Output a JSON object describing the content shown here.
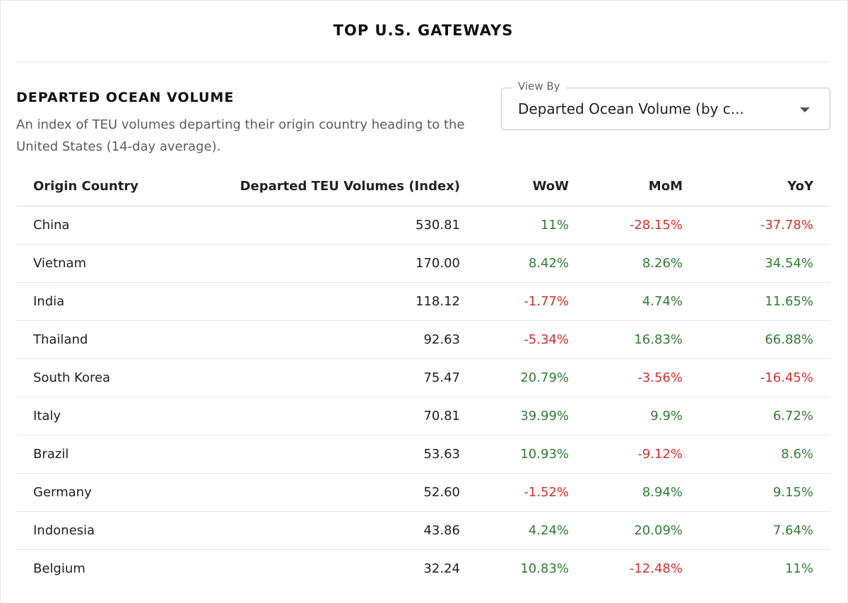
{
  "page": {
    "title": "TOP U.S. GATEWAYS"
  },
  "section": {
    "heading": "DEPARTED OCEAN VOLUME",
    "description": "An index of TEU volumes departing their origin country heading to the United States (14-day average)."
  },
  "view_by": {
    "label": "View By",
    "selected": "Departed Ocean Volume (by c..."
  },
  "table": {
    "columns": [
      "Origin Country",
      "Departed TEU Volumes (Index)",
      "WoW",
      "MoM",
      "YoY"
    ],
    "rows": [
      {
        "country": "China",
        "volume": "530.81",
        "wow": "11%",
        "mom": "-28.15%",
        "yoy": "-37.78%"
      },
      {
        "country": "Vietnam",
        "volume": "170.00",
        "wow": "8.42%",
        "mom": "8.26%",
        "yoy": "34.54%"
      },
      {
        "country": "India",
        "volume": "118.12",
        "wow": "-1.77%",
        "mom": "4.74%",
        "yoy": "11.65%"
      },
      {
        "country": "Thailand",
        "volume": "92.63",
        "wow": "-5.34%",
        "mom": "16.83%",
        "yoy": "66.88%"
      },
      {
        "country": "South Korea",
        "volume": "75.47",
        "wow": "20.79%",
        "mom": "-3.56%",
        "yoy": "-16.45%"
      },
      {
        "country": "Italy",
        "volume": "70.81",
        "wow": "39.99%",
        "mom": "9.9%",
        "yoy": "6.72%"
      },
      {
        "country": "Brazil",
        "volume": "53.63",
        "wow": "10.93%",
        "mom": "-9.12%",
        "yoy": "8.6%"
      },
      {
        "country": "Germany",
        "volume": "52.60",
        "wow": "-1.52%",
        "mom": "8.94%",
        "yoy": "9.15%"
      },
      {
        "country": "Indonesia",
        "volume": "43.86",
        "wow": "4.24%",
        "mom": "20.09%",
        "yoy": "7.64%"
      },
      {
        "country": "Belgium",
        "volume": "32.24",
        "wow": "10.83%",
        "mom": "-12.48%",
        "yoy": "11%"
      }
    ]
  },
  "colors": {
    "positive": "#2e7d32",
    "negative": "#d32f2f"
  },
  "icons": {
    "dropdown": "caret-down-icon"
  }
}
